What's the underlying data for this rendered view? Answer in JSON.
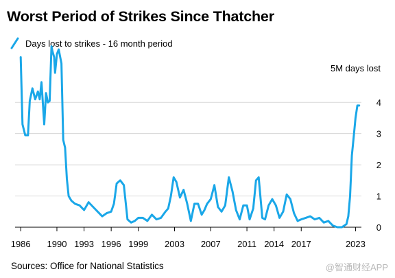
{
  "colors": {
    "line": "#1aa7e8",
    "grid": "#d6d6d6",
    "axis": "#000000"
  },
  "chart_data": {
    "type": "line",
    "title": "Worst Period of Strikes Since Thatcher",
    "unit_label": "5M days lost",
    "source": "Sources: Office for National Statistics",
    "watermark": "@智通财经APP",
    "series": [
      {
        "name": "Days lost to strikes - 16 month period",
        "x": [
          1986.0,
          1986.2,
          1986.5,
          1986.8,
          1987.0,
          1987.3,
          1987.6,
          1987.9,
          1988.1,
          1988.3,
          1988.6,
          1988.8,
          1989.0,
          1989.2,
          1989.4,
          1989.5,
          1989.7,
          1989.8,
          1990.0,
          1990.2,
          1990.5,
          1990.7,
          1990.9,
          1991.1,
          1991.3,
          1991.6,
          1992.0,
          1992.5,
          1993.0,
          1993.5,
          1994.0,
          1994.5,
          1995.0,
          1995.5,
          1996.0,
          1996.3,
          1996.6,
          1997.0,
          1997.4,
          1997.8,
          1998.2,
          1998.6,
          1999.0,
          1999.5,
          2000.0,
          2000.5,
          2001.0,
          2001.5,
          2002.0,
          2002.3,
          2002.6,
          2002.9,
          2003.2,
          2003.6,
          2004.0,
          2004.4,
          2004.8,
          2005.2,
          2005.6,
          2006.0,
          2006.3,
          2006.6,
          2007.0,
          2007.4,
          2007.8,
          2008.2,
          2008.6,
          2009.0,
          2009.4,
          2009.8,
          2010.2,
          2010.6,
          2011.0,
          2011.3,
          2011.7,
          2012.0,
          2012.3,
          2012.7,
          2013.0,
          2013.4,
          2013.8,
          2014.2,
          2014.6,
          2015.0,
          2015.4,
          2015.8,
          2016.2,
          2016.6,
          2017.0,
          2017.5,
          2018.0,
          2018.5,
          2019.0,
          2019.5,
          2020.0,
          2020.5,
          2021.0,
          2021.5,
          2022.0,
          2022.2,
          2022.4,
          2022.6,
          2022.8,
          2023.0,
          2023.2,
          2023.4
        ],
        "values": [
          5.45,
          3.3,
          2.95,
          2.95,
          4.05,
          4.45,
          4.1,
          4.35,
          4.1,
          4.65,
          3.3,
          4.3,
          4.0,
          4.05,
          5.8,
          5.65,
          5.45,
          4.95,
          5.55,
          5.7,
          5.25,
          2.8,
          2.55,
          1.55,
          1.0,
          0.85,
          0.75,
          0.7,
          0.55,
          0.8,
          0.65,
          0.5,
          0.35,
          0.45,
          0.5,
          0.75,
          1.4,
          1.5,
          1.35,
          0.25,
          0.15,
          0.2,
          0.3,
          0.3,
          0.2,
          0.4,
          0.25,
          0.3,
          0.5,
          0.6,
          1.0,
          1.6,
          1.45,
          0.95,
          1.2,
          0.75,
          0.2,
          0.75,
          0.75,
          0.4,
          0.55,
          0.75,
          0.9,
          1.35,
          0.65,
          0.5,
          0.7,
          1.6,
          1.15,
          0.55,
          0.25,
          0.7,
          0.7,
          0.25,
          0.6,
          1.5,
          1.6,
          0.3,
          0.25,
          0.7,
          0.9,
          0.7,
          0.3,
          0.5,
          1.05,
          0.9,
          0.45,
          0.2,
          0.25,
          0.3,
          0.35,
          0.25,
          0.3,
          0.15,
          0.2,
          0.05,
          0.0,
          0.0,
          0.1,
          0.35,
          1.0,
          2.3,
          2.9,
          3.5,
          3.9,
          3.9
        ]
      }
    ],
    "x_ticks": [
      "1986",
      "1990",
      "1993",
      "1996",
      "1999",
      "2003",
      "2007",
      "2011",
      "2014",
      "2017",
      "2023"
    ],
    "x_tick_values": [
      1986,
      1990,
      1993,
      1996,
      1999,
      2003,
      2007,
      2011,
      2014,
      2017,
      2023
    ],
    "y_ticks": [
      "0",
      "1",
      "2",
      "3",
      "4"
    ],
    "y_tick_values": [
      0,
      1,
      2,
      3,
      4
    ],
    "xlim": [
      1985,
      2026
    ],
    "ylim": [
      0,
      5.7
    ],
    "grid": true,
    "legend": "top-left"
  }
}
